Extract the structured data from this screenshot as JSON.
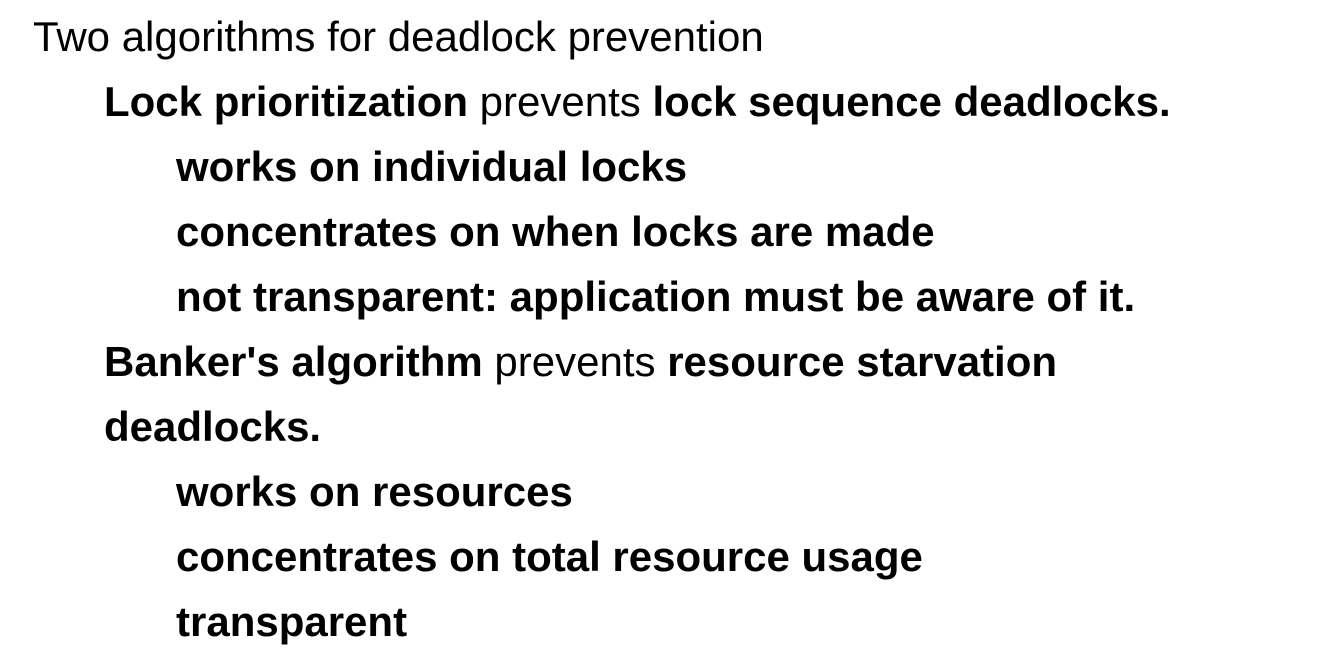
{
  "slide": {
    "heading": "Two algorithms for deadlock prevention",
    "lock_prioritization": {
      "term": "Lock prioritization",
      "verb": " prevents ",
      "target": "lock sequence deadlocks.",
      "points": [
        "works on individual locks",
        "concentrates on when locks are made",
        "not transparent: application must be aware of it."
      ]
    },
    "bankers_algorithm": {
      "term": "Banker's algorithm",
      "verb": " prevents ",
      "target": "resource starvation",
      "target_continued": "deadlocks.",
      "points": [
        "works on resources",
        "concentrates on total resource usage",
        "transparent"
      ]
    }
  }
}
